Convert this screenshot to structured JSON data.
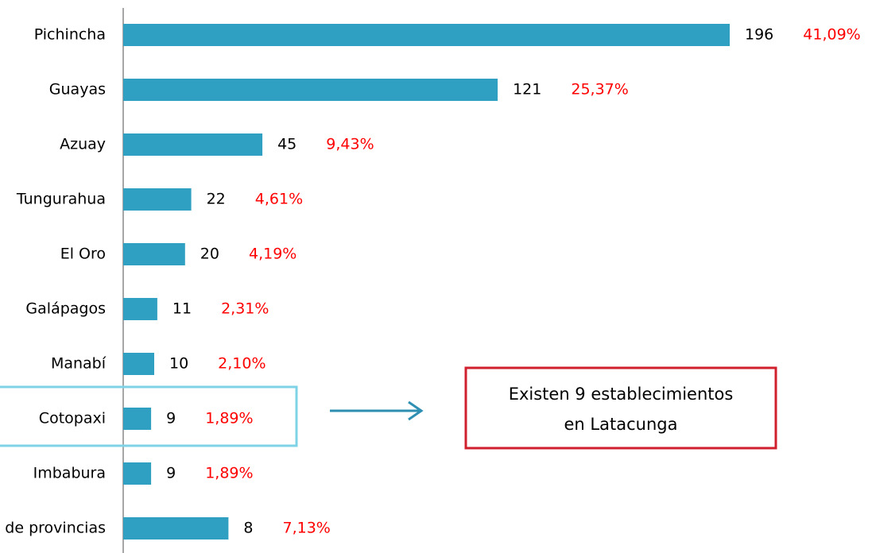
{
  "chart_data": {
    "type": "bar",
    "orientation": "horizontal",
    "categories": [
      "Pichincha",
      "Guayas",
      "Azuay",
      "Tungurahua",
      "El Oro",
      "Galápagos",
      "Manabí",
      "Cotopaxi",
      "Imbabura",
      "de provincias"
    ],
    "values": [
      41.09,
      25.37,
      9.43,
      4.61,
      4.19,
      2.31,
      2.1,
      1.89,
      1.89,
      7.13
    ],
    "value_labels": [
      "41,09%",
      "25,37%",
      "9,43%",
      "4,61%",
      "4,19%",
      "2,31%",
      "2,10%",
      "1,89%",
      "1,89%",
      "7,13%"
    ],
    "counts": [
      196,
      121,
      45,
      22,
      20,
      11,
      10,
      9,
      9,
      8
    ],
    "color": "#2fa0c1",
    "value_label_color": "#ff0000",
    "annotation": {
      "lines": [
        "Existen 9 establecimientos",
        "en Latacunga"
      ],
      "highlight": "Cotopaxi"
    }
  }
}
